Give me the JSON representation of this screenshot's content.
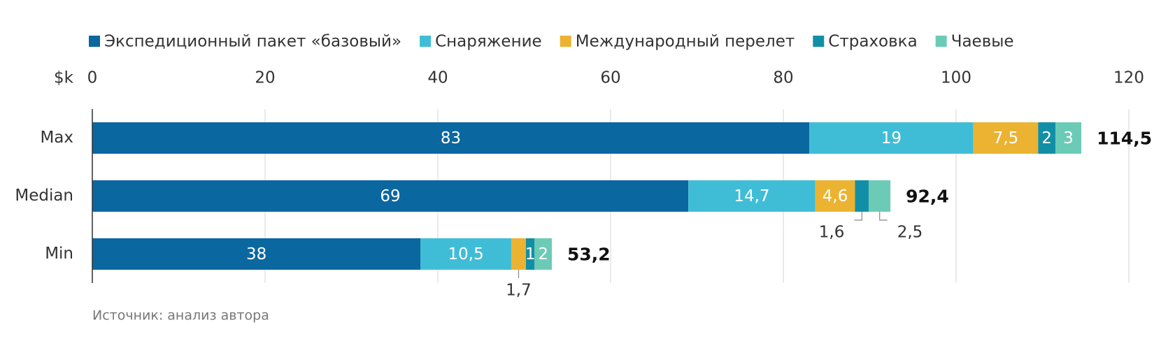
{
  "chart_data": {
    "type": "bar",
    "orientation": "horizontal",
    "stacked": true,
    "categories": [
      "Max",
      "Median",
      "Min"
    ],
    "series": [
      {
        "name": "Экспедиционный пакет «базовый»",
        "color": "#0a67a0",
        "values": [
          83,
          69,
          38
        ],
        "value_labels": [
          "83",
          "69",
          "38"
        ]
      },
      {
        "name": "Снаряжение",
        "color": "#40bdd6",
        "values": [
          19,
          14.7,
          10.5
        ],
        "value_labels": [
          "19",
          "14,7",
          "10,5"
        ]
      },
      {
        "name": "Международный перелет",
        "color": "#ebb331",
        "values": [
          7.5,
          4.6,
          1.7
        ],
        "value_labels": [
          "7,5",
          "4,6",
          "1,7"
        ]
      },
      {
        "name": "Страховка",
        "color": "#128fa6",
        "values": [
          2,
          1.6,
          1
        ],
        "value_labels": [
          "2",
          "1,6",
          "1"
        ]
      },
      {
        "name": "Чаевые",
        "color": "#6ccbb6",
        "values": [
          3,
          2.5,
          2
        ],
        "value_labels": [
          "3",
          "2,5",
          "2"
        ]
      }
    ],
    "totals": [
      114.5,
      92.4,
      53.2
    ],
    "total_labels": [
      "114,5",
      "92,4",
      "53,2"
    ],
    "xlabel": "$k",
    "xlim": [
      0,
      120
    ],
    "xticks": [
      0,
      20,
      40,
      60,
      80,
      100,
      120
    ],
    "grid": true,
    "legend": "top",
    "source": "Источник: анализ автора"
  }
}
